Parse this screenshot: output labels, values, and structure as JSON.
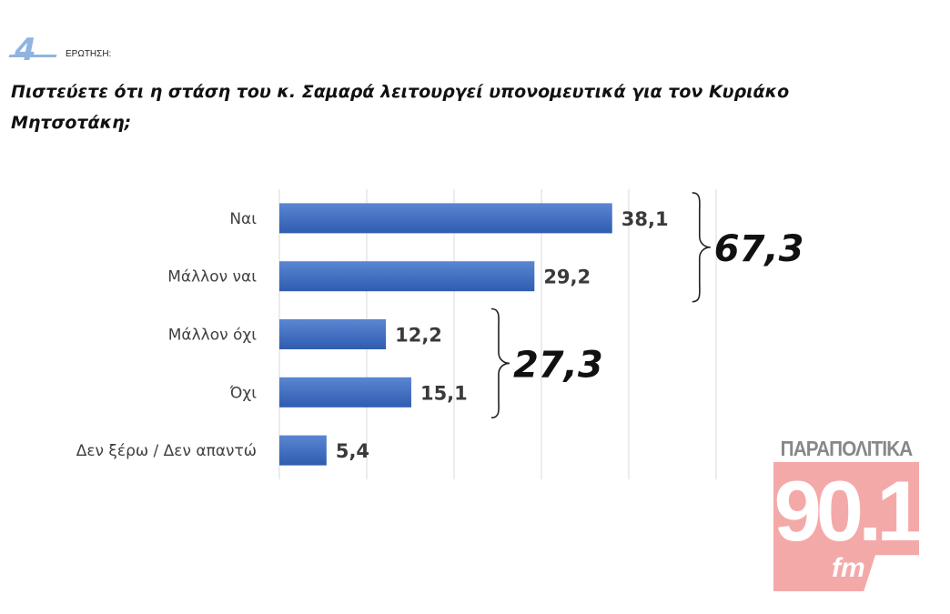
{
  "question": {
    "number": "4",
    "label": "ΕΡΩΤΗΣΗ:",
    "text": "Πιστεύετε ότι η στάση του κ. Σαμαρά λειτουργεί υπονομευτικά για τον Κυριάκο Μητσοτάκη;"
  },
  "chart_data": {
    "type": "bar",
    "orientation": "horizontal",
    "title": "",
    "xlabel": "",
    "ylabel": "",
    "categories": [
      "Ναι",
      "Μάλλον ναι",
      "Μάλλον όχι",
      "Όχι",
      "Δεν ξέρω / Δεν απαντώ"
    ],
    "values": [
      38.1,
      29.2,
      12.2,
      15.1,
      5.4
    ],
    "value_labels": [
      "38,1",
      "29,2",
      "12,2",
      "15,1",
      "5,4"
    ],
    "xlim": [
      0,
      50
    ],
    "grid": true,
    "bar_color": "#4472c4",
    "groups": [
      {
        "label": "67,3",
        "categories": [
          0,
          1
        ]
      },
      {
        "label": "27,3",
        "categories": [
          2,
          3
        ]
      }
    ]
  },
  "logo": {
    "top_text": "ΠΑΡΑΠΟΛΙΤΙΚΑ",
    "number": "90.1",
    "suffix": "fm",
    "color": "#f4a9a9"
  }
}
